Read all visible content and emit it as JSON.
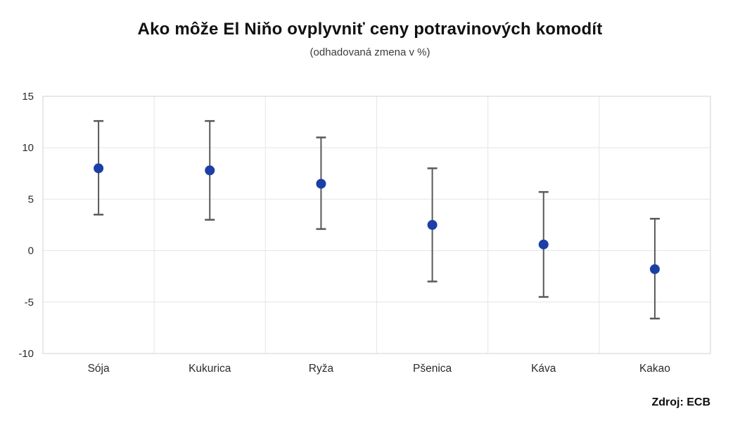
{
  "chart_data": {
    "type": "scatter",
    "error_bars": true,
    "title": "Ako môže El Niňo ovplyvniť ceny potravinových komodít",
    "subtitle": "(odhadovaná zmena v %)",
    "source": "Zdroj: ECB",
    "categories": [
      "Sója",
      "Kukurica",
      "Ryža",
      "Pšenica",
      "Káva",
      "Kakao"
    ],
    "points": [
      8.0,
      7.8,
      6.5,
      2.5,
      0.6,
      -1.8
    ],
    "upper": [
      12.6,
      12.6,
      11.0,
      8.0,
      5.7,
      3.1
    ],
    "lower": [
      3.5,
      3.0,
      2.1,
      -3.0,
      -4.5,
      -6.6
    ],
    "xlabel": "",
    "ylabel": "",
    "ylim": [
      -10,
      15
    ],
    "yticks": [
      15,
      10,
      5,
      0,
      -5,
      -10
    ],
    "grid": true,
    "legend": false,
    "colors": {
      "point": "#1b3fa6",
      "error_bar": "#58595b",
      "gridline": "#e6e6e6",
      "plot_border": "#d2d2d2",
      "tick_label": "#2b2b2b",
      "category_label": "#2b2b2b"
    }
  }
}
